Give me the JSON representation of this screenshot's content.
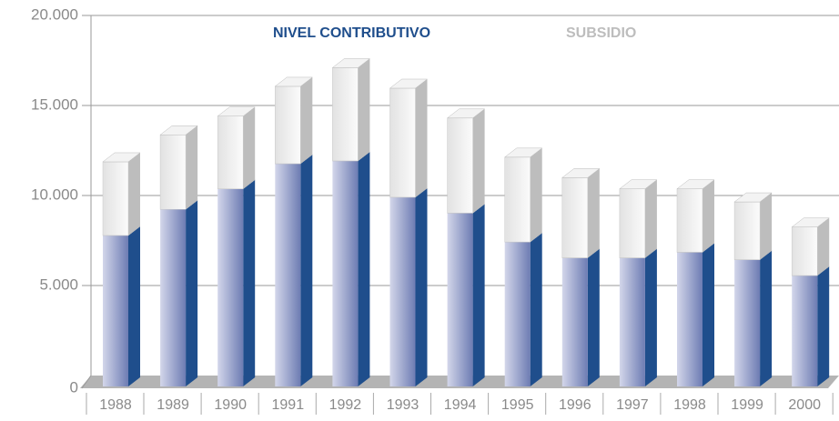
{
  "chart_data": {
    "type": "stacked-bar-3d",
    "categories": [
      "1988",
      "1989",
      "1990",
      "1991",
      "1992",
      "1993",
      "1994",
      "1995",
      "1996",
      "1997",
      "1998",
      "1999",
      "2000"
    ],
    "series": [
      {
        "name": "NIVEL CONTRIBUTIVO",
        "color": "#1f4e8c",
        "values": [
          8100,
          9500,
          10600,
          11950,
          12100,
          10150,
          9300,
          7750,
          6900,
          6900,
          7200,
          6800,
          5950
        ]
      },
      {
        "name": "SUBSIDIO",
        "color": "#bdbdbd",
        "values": [
          3950,
          4000,
          3900,
          4150,
          5000,
          5850,
          5100,
          4550,
          4300,
          3700,
          3400,
          3100,
          2600
        ]
      }
    ],
    "ylim": [
      0,
      20000
    ],
    "yticks": [
      0,
      {
        "value": 5000,
        "label": "5.000"
      },
      {
        "value": 10000,
        "label": "10.000"
      },
      {
        "value": 15000,
        "label": "15.000"
      },
      {
        "value": 20000,
        "label": "20.000"
      }
    ],
    "grid": true
  }
}
